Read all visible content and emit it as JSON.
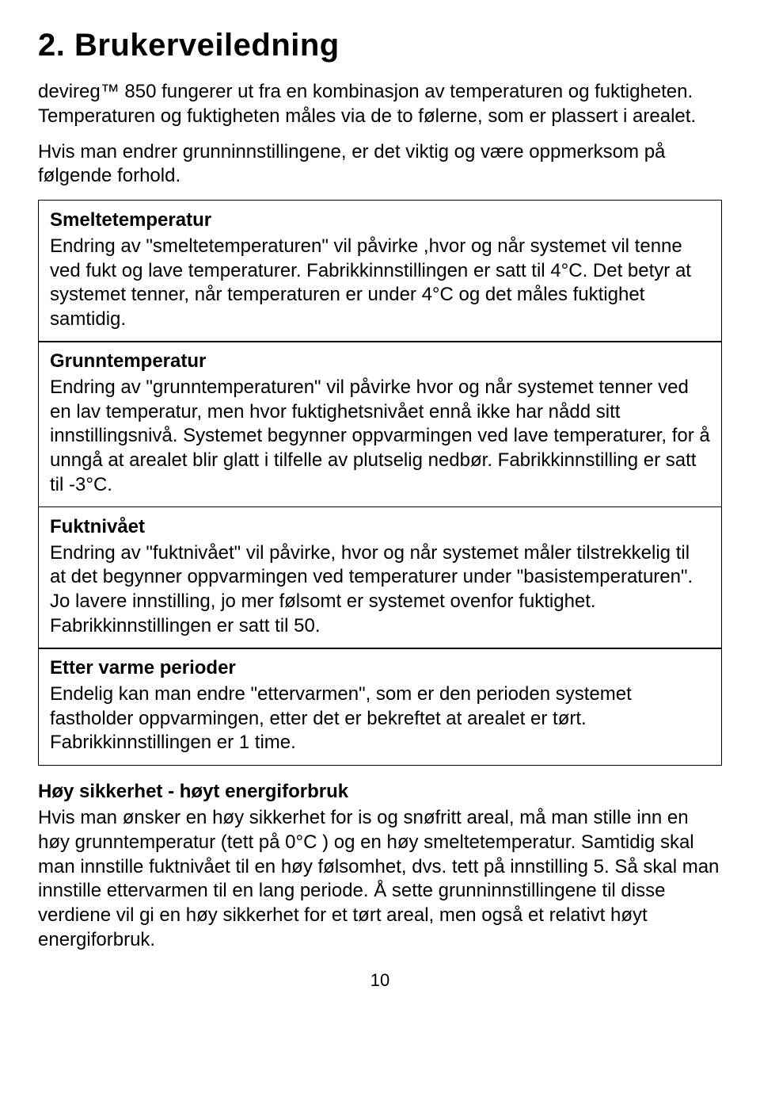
{
  "title": "2. Brukerveiledning",
  "intro1": "devireg™ 850 fungerer ut fra en kombinasjon av temperaturen og fuktigheten. Temperaturen og fuktigheten måles via de to følerne, som er plassert i arealet.",
  "intro2": "Hvis man endrer grunninnstillingene, er det viktig og være oppmerksom på følgende forhold.",
  "smelte_title": "Smeltetemperatur",
  "smelte_body": "Endring av \"smeltetemperaturen\" vil påvirke ,hvor og når systemet vil tenne ved fukt og lave temperaturer. Fabrikkinnstillingen er satt til 4°C. Det betyr at systemet tenner, når temperaturen er under 4°C og det måles fuktighet samtidig.",
  "grunn_title": "Grunntemperatur",
  "grunn_body": "Endring av \"grunntemperaturen\" vil påvirke hvor og når systemet tenner ved en lav temperatur, men hvor fuktighetsnivået ennå ikke har nådd sitt innstillingsnivå. Systemet begynner oppvarmingen ved lave temperaturer, for å unngå at arealet blir glatt i tilfelle av plutselig nedbør. Fabrikkinnstilling er satt til -3°C.",
  "fukt_title": "Fuktnivået",
  "fukt_body": "Endring av \"fuktnivået\" vil påvirke, hvor og når systemet måler tilstrekkelig til at det begynner oppvarmingen ved temperaturer under \"basistemperaturen\". Jo lavere innstilling, jo mer følsomt er systemet ovenfor fuktighet. Fabrikkinnstillingen er satt til 50.",
  "etter_title": "Etter varme perioder",
  "etter_body": "Endelig kan man endre \"ettervarmen\", som er den perioden systemet fastholder oppvarmingen, etter det er bekreftet at arealet er tørt. Fabrikkinnstillingen er 1 time.",
  "footer_title": "Høy sikkerhet - høyt energiforbruk",
  "footer_body": "Hvis man ønsker en høy sikkerhet for is og snøfritt areal, må man stille inn en høy grunntemperatur (tett på 0°C ) og en høy smeltetemperatur. Samtidig skal man innstille fuktnivået til en høy følsomhet, dvs. tett på innstilling 5. Så skal man innstille ettervarmen til en lang periode. Å sette grunninnstillingene til disse verdiene vil gi en høy sikkerhet for et tørt areal, men også et relativt høyt energiforbruk.",
  "pagenum": "10"
}
